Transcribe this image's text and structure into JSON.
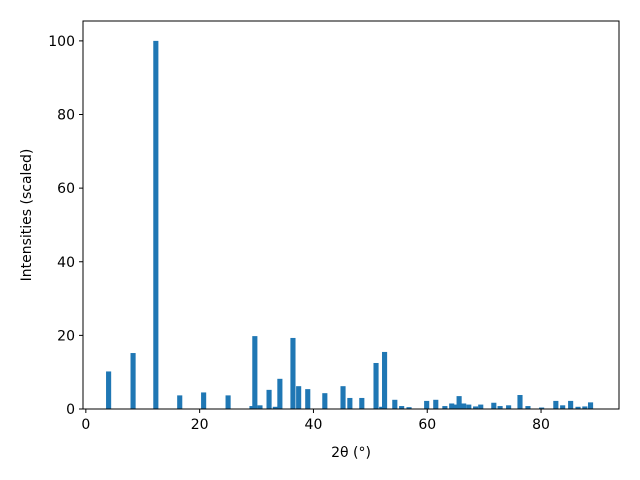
{
  "chart_data": {
    "type": "bar",
    "x_label": "2θ (°)",
    "y_label": "Intensities (scaled)",
    "x": [
      4.0,
      8.3,
      12.3,
      16.5,
      20.7,
      25.0,
      29.2,
      29.7,
      30.6,
      32.2,
      33.3,
      34.1,
      36.4,
      37.4,
      39.0,
      42.0,
      45.2,
      46.4,
      48.5,
      51.0,
      52.0,
      52.5,
      54.3,
      55.5,
      56.8,
      59.9,
      61.5,
      63.1,
      64.3,
      65.0,
      65.6,
      66.4,
      67.3,
      68.5,
      69.4,
      71.7,
      72.8,
      74.3,
      76.3,
      77.7,
      80.1,
      82.6,
      83.8,
      85.2,
      86.5,
      87.7,
      88.7
    ],
    "values": [
      10.2,
      15.2,
      100,
      3.7,
      4.5,
      3.7,
      0.8,
      19.8,
      1.0,
      5.2,
      0.6,
      8.2,
      19.3,
      6.2,
      5.4,
      4.3,
      6.2,
      3.0,
      3.0,
      12.5,
      0.6,
      15.5,
      2.5,
      0.8,
      0.5,
      2.2,
      2.5,
      0.8,
      1.5,
      1.2,
      3.5,
      1.5,
      1.2,
      0.7,
      1.2,
      1.7,
      0.8,
      1.0,
      3.8,
      0.8,
      0.4,
      2.2,
      1.0,
      2.2,
      0.6,
      0.7,
      1.8
    ],
    "color": "#1f77b4",
    "xlim": [
      -0.5,
      93.7
    ],
    "ylim": [
      0,
      105.4
    ],
    "xticks": [
      0,
      20,
      40,
      60,
      80
    ],
    "yticks": [
      0,
      20,
      40,
      60,
      80,
      100
    ]
  }
}
